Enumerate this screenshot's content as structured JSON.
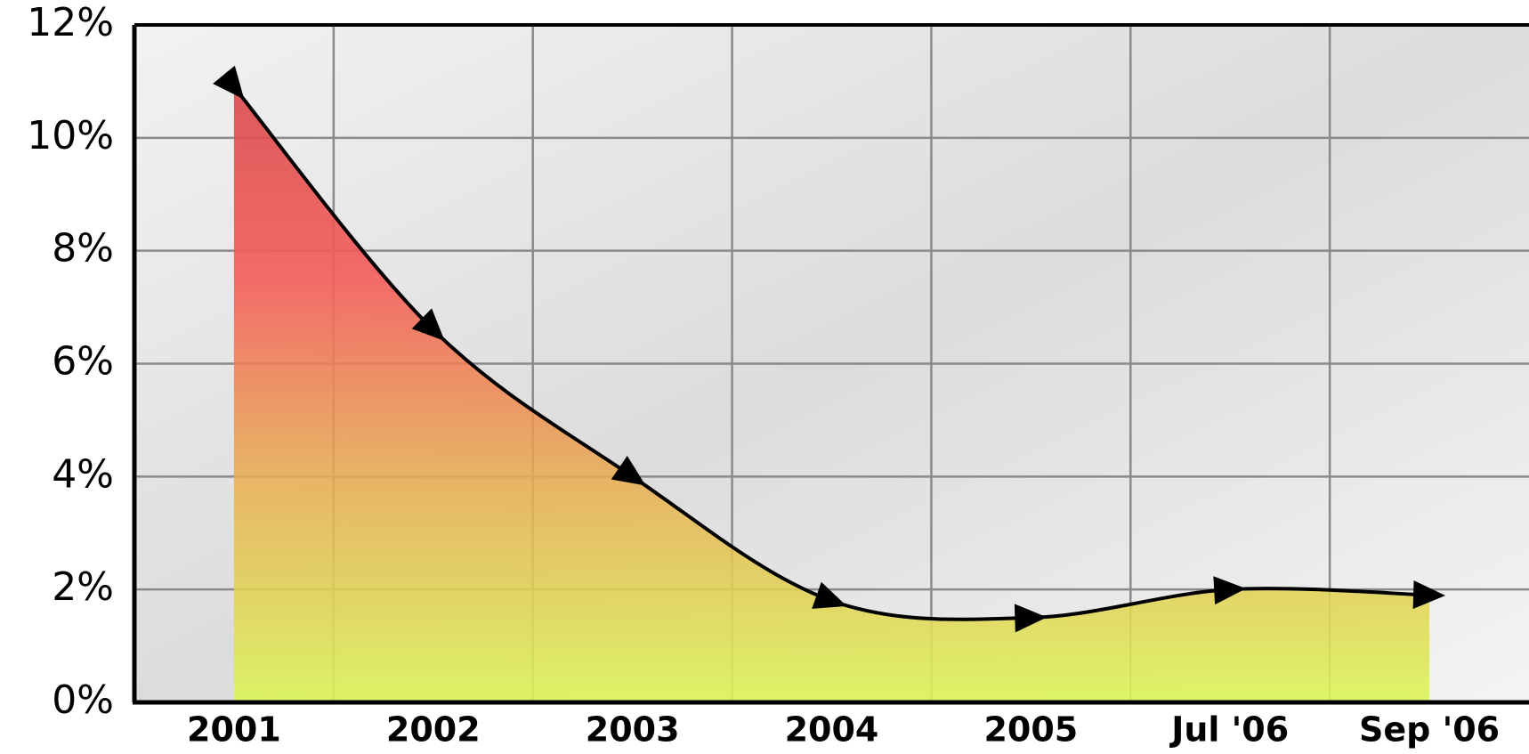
{
  "chart_data": {
    "type": "area",
    "categories": [
      "2001",
      "2002",
      "2003",
      "2004",
      "2005",
      "Jul '06",
      "Sep '06"
    ],
    "values": [
      10.9,
      6.6,
      4.0,
      1.8,
      1.5,
      2.0,
      1.9
    ],
    "ylim": [
      0,
      12
    ],
    "yticks": [
      {
        "value": 0,
        "label": "0%"
      },
      {
        "value": 2,
        "label": "2%"
      },
      {
        "value": 4,
        "label": "4%"
      },
      {
        "value": 6,
        "label": "6%"
      },
      {
        "value": 8,
        "label": "8%"
      },
      {
        "value": 10,
        "label": "10%"
      },
      {
        "value": 12,
        "label": "12%"
      }
    ],
    "grid": true,
    "color": "#000000"
  }
}
